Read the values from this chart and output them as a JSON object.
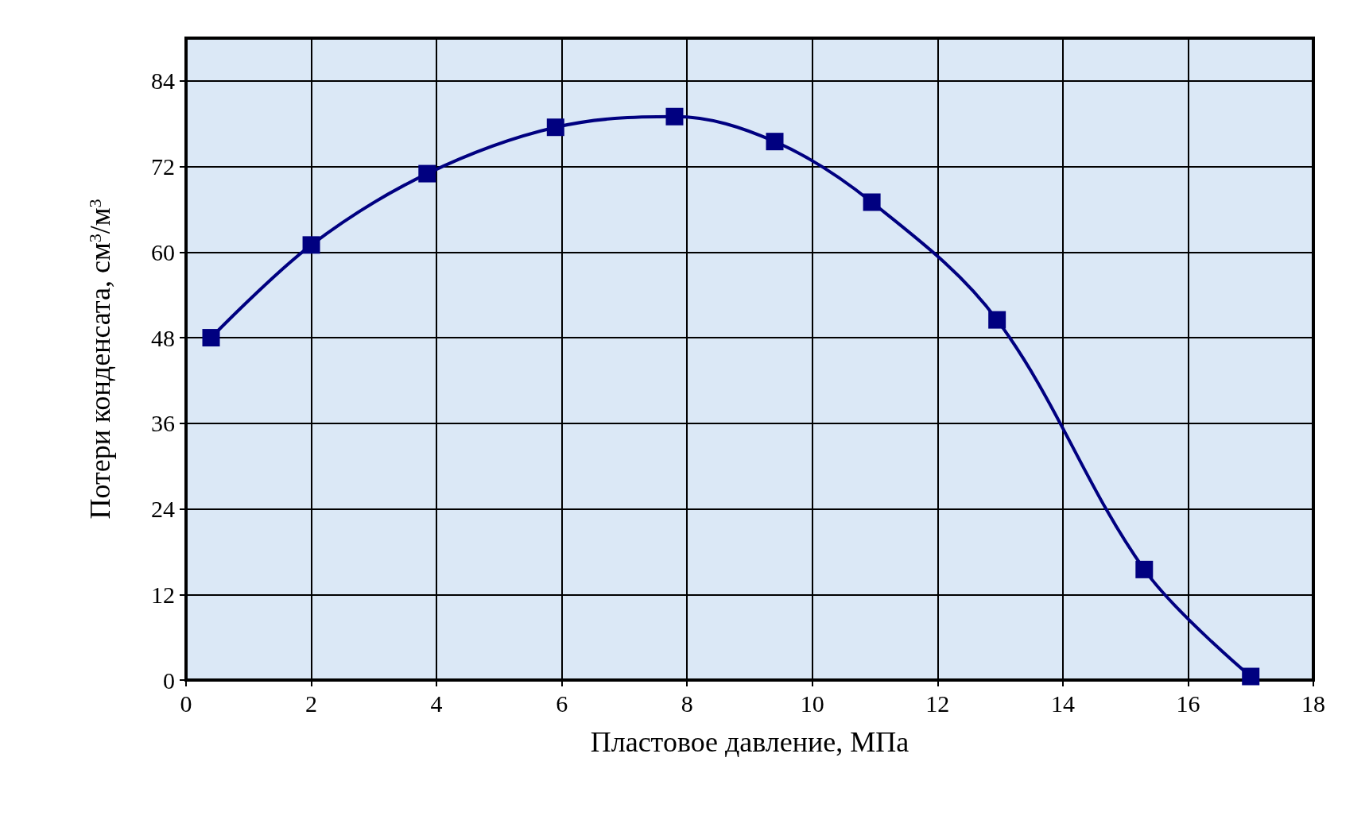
{
  "chart_data": {
    "type": "line",
    "xlabel": "Пластовое давление, МПа",
    "ylabel": "Потери конденсата, см$^{3}$/м$^{3}$",
    "x": [
      0.4,
      2,
      3.85,
      5.9,
      7.8,
      9.4,
      10.95,
      12.95,
      15.3,
      17
    ],
    "series": [
      {
        "color": "#000080",
        "values": [
          48,
          61,
          71,
          77.5,
          79,
          75.5,
          67,
          50.5,
          15.5,
          0.5
        ]
      }
    ],
    "xlim": [
      0,
      18
    ],
    "xticks": [
      0,
      2,
      4,
      6,
      8,
      10,
      12,
      14,
      16,
      18
    ],
    "ylim": [
      0,
      90
    ],
    "yticks": [
      0,
      12,
      24,
      36,
      48,
      60,
      72,
      84
    ],
    "grid": true,
    "marker": "square",
    "line_style": "solid"
  }
}
